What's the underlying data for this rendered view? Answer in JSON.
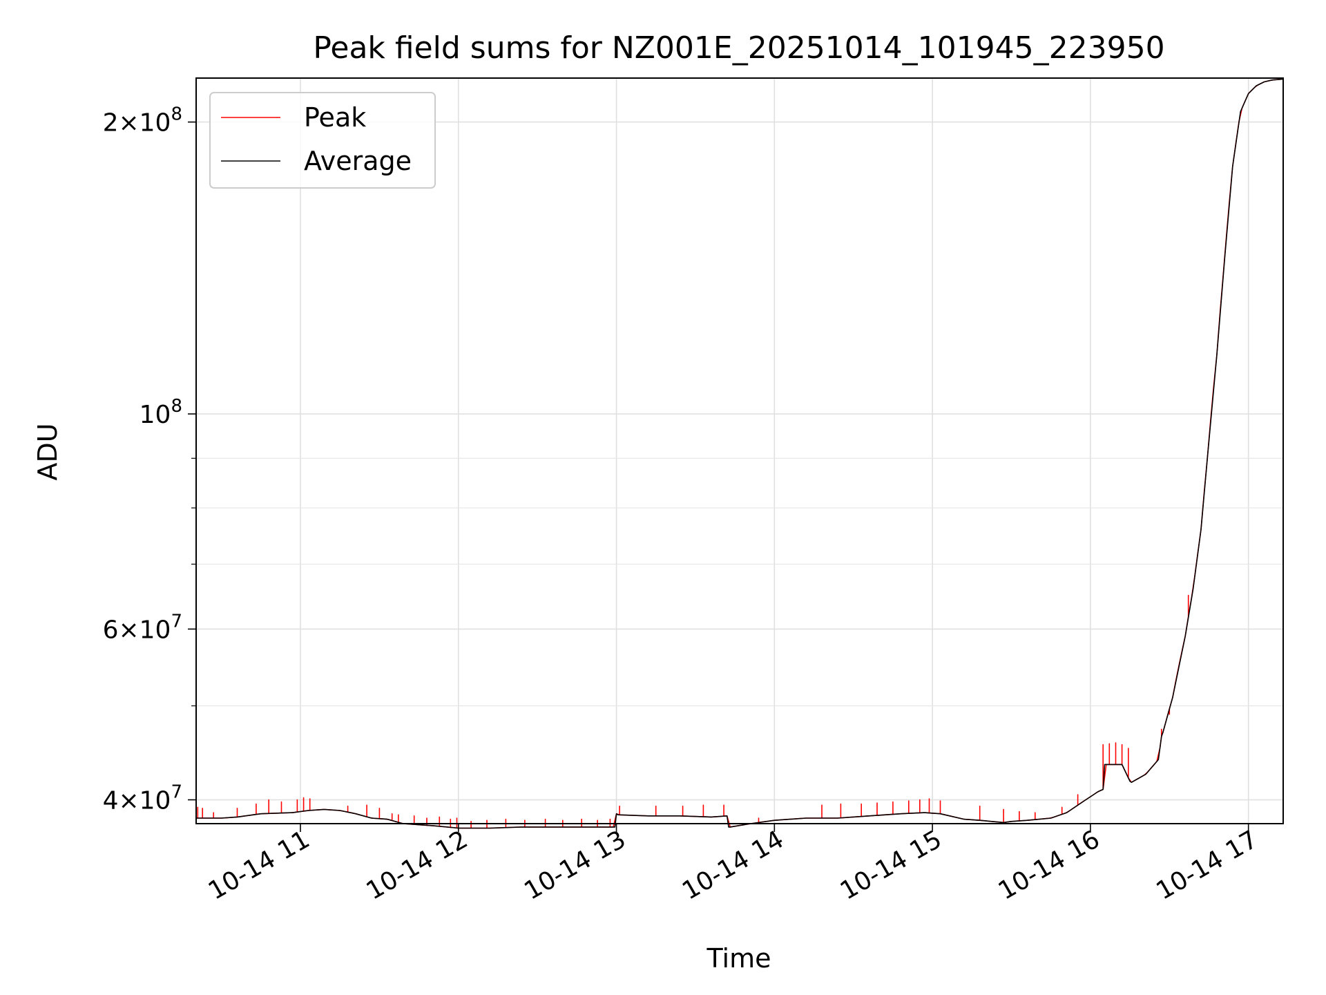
{
  "chart_data": {
    "type": "line",
    "title": "Peak field sums for NZ001E_20251014_101945_223950",
    "xlabel": "Time",
    "ylabel": "ADU",
    "x_unit": "hours (2025-10-14)",
    "xlim": [
      10.34,
      17.22
    ],
    "ylim": [
      37800000,
      222000000
    ],
    "yscale": "log",
    "grid": true,
    "legend_position": "upper left",
    "x_ticks": [
      {
        "value": 11,
        "label": "10-14 11"
      },
      {
        "value": 12,
        "label": "10-14 12"
      },
      {
        "value": 13,
        "label": "10-14 13"
      },
      {
        "value": 14,
        "label": "10-14 14"
      },
      {
        "value": 15,
        "label": "10-14 15"
      },
      {
        "value": 16,
        "label": "10-14 16"
      },
      {
        "value": 17,
        "label": "10-14 17"
      }
    ],
    "y_major_ticks": [
      {
        "value": 40000000,
        "mantissa": "4",
        "exponent": "7"
      },
      {
        "value": 60000000,
        "mantissa": "6",
        "exponent": "7"
      },
      {
        "value": 100000000,
        "mantissa": "",
        "exponent": "8"
      },
      {
        "value": 200000000,
        "mantissa": "2",
        "exponent": "8"
      }
    ],
    "y_minor_ticks": [
      50000000,
      70000000,
      80000000,
      90000000
    ],
    "series": [
      {
        "name": "Average",
        "color": "#000000",
        "x": [
          10.34,
          10.5,
          10.6,
          10.75,
          10.95,
          11.05,
          11.15,
          11.25,
          11.35,
          11.45,
          11.55,
          11.65,
          11.75,
          11.85,
          12.0,
          12.2,
          12.4,
          12.6,
          12.8,
          12.99,
          13.0,
          13.01,
          13.2,
          13.4,
          13.6,
          13.7,
          13.71,
          13.72,
          13.85,
          14.0,
          14.2,
          14.4,
          14.6,
          14.8,
          14.95,
          15.05,
          15.2,
          15.3,
          15.45,
          15.5,
          15.6,
          15.75,
          15.85,
          15.95,
          16.05,
          16.08,
          16.09,
          16.2,
          16.25,
          16.26,
          16.35,
          16.43,
          16.45,
          16.46,
          16.52,
          16.6,
          16.65,
          16.7,
          16.74,
          16.8,
          16.85,
          16.9,
          16.95,
          17.0,
          17.05,
          17.1,
          17.15,
          17.22
        ],
        "values": [
          38300000,
          38300000,
          38400000,
          38700000,
          38800000,
          39000000,
          39100000,
          39000000,
          38700000,
          38300000,
          38200000,
          37800000,
          37700000,
          37600000,
          37400000,
          37400000,
          37500000,
          37500000,
          37500000,
          37500000,
          38700000,
          38600000,
          38500000,
          38500000,
          38400000,
          38500000,
          37500000,
          37500000,
          37800000,
          38100000,
          38300000,
          38300000,
          38500000,
          38700000,
          38800000,
          38700000,
          38200000,
          38100000,
          37900000,
          38000000,
          38100000,
          38300000,
          38800000,
          39800000,
          40800000,
          41000000,
          43500000,
          43500000,
          41800000,
          41700000,
          42500000,
          44000000,
          46500000,
          47000000,
          51000000,
          59000000,
          66000000,
          76000000,
          90000000,
          115000000,
          145000000,
          180000000,
          205000000,
          214000000,
          218000000,
          220000000,
          221000000,
          221500000
        ]
      },
      {
        "name": "Peak",
        "color": "#ff0000",
        "x": [
          10.35,
          10.38,
          10.45,
          10.6,
          10.72,
          10.8,
          10.88,
          10.98,
          11.02,
          11.06,
          11.3,
          11.42,
          11.5,
          11.58,
          11.62,
          11.72,
          11.8,
          11.88,
          11.95,
          11.99,
          12.08,
          12.18,
          12.3,
          12.42,
          12.55,
          12.66,
          12.78,
          12.88,
          12.96,
          13.02,
          13.25,
          13.42,
          13.55,
          13.68,
          13.9,
          14.3,
          14.42,
          14.55,
          14.65,
          14.75,
          14.85,
          14.92,
          14.98,
          15.05,
          15.3,
          15.45,
          15.55,
          15.65,
          15.82,
          15.92,
          16.08,
          16.12,
          16.16,
          16.2,
          16.24,
          16.45,
          16.5,
          16.55,
          16.62
        ],
        "values": [
          39300000,
          39200000,
          38800000,
          39200000,
          39600000,
          40000000,
          39800000,
          40000000,
          40200000,
          40100000,
          39400000,
          39500000,
          39200000,
          38700000,
          38600000,
          38500000,
          38300000,
          38400000,
          38200000,
          38300000,
          38000000,
          38100000,
          38200000,
          38100000,
          38200000,
          38100000,
          38200000,
          38100000,
          38200000,
          39400000,
          39400000,
          39400000,
          39500000,
          39500000,
          38300000,
          39500000,
          39600000,
          39600000,
          39700000,
          39800000,
          39900000,
          40000000,
          40100000,
          39900000,
          39400000,
          39100000,
          38900000,
          38800000,
          39300000,
          40500000,
          45600000,
          45700000,
          45800000,
          45600000,
          45200000,
          47300000,
          49000000,
          54000000,
          65000000
        ]
      }
    ]
  }
}
